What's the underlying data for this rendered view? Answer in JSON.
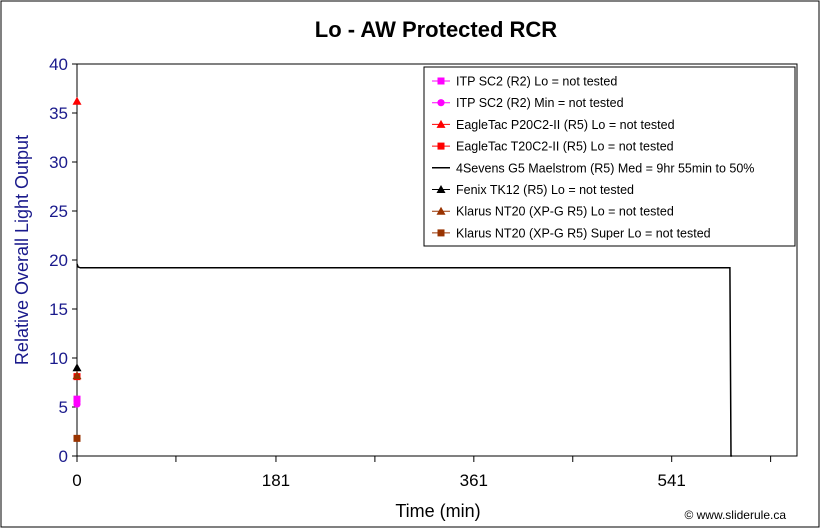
{
  "chart_data": {
    "type": "line",
    "title": "Lo - AW Protected RCR",
    "xlabel": "Time (min)",
    "ylabel": "Relative Overall Light Output",
    "xlim": [
      0,
      655
    ],
    "ylim": [
      0,
      40
    ],
    "xticks": [
      0,
      181,
      361,
      541
    ],
    "xtick_labels": [
      "0",
      "181",
      "361",
      "541"
    ],
    "xminor_ticks": [
      90,
      271,
      451,
      631
    ],
    "yticks": [
      0,
      5,
      10,
      15,
      20,
      25,
      30,
      35,
      40
    ],
    "ytick_labels": [
      "0",
      "5",
      "10",
      "15",
      "20",
      "25",
      "30",
      "35",
      "40"
    ],
    "legend_position": "top-right",
    "credit": "© www.sliderule.ca",
    "series": [
      {
        "name": "ITP SC2 (R2) Lo = not tested",
        "color": "#ff00ff",
        "marker": "square",
        "x": [
          0
        ],
        "y": [
          5.8
        ]
      },
      {
        "name": "ITP SC2 (R2) Min = not tested",
        "color": "#ff00ff",
        "marker": "circle",
        "x": [
          0
        ],
        "y": [
          5.3
        ]
      },
      {
        "name": "EagleTac P20C2-II (R5) Lo = not tested",
        "color": "#ff0000",
        "marker": "triangle",
        "x": [
          0
        ],
        "y": [
          36.2
        ]
      },
      {
        "name": "EagleTac T20C2-II (R5) Lo = not tested",
        "color": "#ff0000",
        "marker": "square",
        "x": [
          0
        ],
        "y": [
          8.1
        ]
      },
      {
        "name": "4Sevens G5 Maelstrom (R5) Med = 9hr 55min to 50%",
        "color": "#000000",
        "marker": "none",
        "x": [
          0,
          1,
          3,
          5,
          10,
          50,
          100,
          200,
          300,
          400,
          500,
          550,
          590,
          594,
          595,
          596
        ],
        "y": [
          19.6,
          19.3,
          19.2,
          19.2,
          19.2,
          19.2,
          19.2,
          19.2,
          19.2,
          19.2,
          19.2,
          19.2,
          19.2,
          19.2,
          0,
          0
        ]
      },
      {
        "name": "Fenix TK12 (R5) Lo = not tested",
        "color": "#000000",
        "marker": "triangle",
        "x": [
          0
        ],
        "y": [
          9.0
        ]
      },
      {
        "name": "Klarus NT20 (XP-G R5) Lo = not tested",
        "color": "#993300",
        "marker": "triangle",
        "x": [
          0
        ],
        "y": [
          8.2
        ]
      },
      {
        "name": "Klarus NT20 (XP-G R5) Super Lo = not tested",
        "color": "#993300",
        "marker": "square",
        "x": [
          0
        ],
        "y": [
          1.8
        ]
      }
    ]
  }
}
